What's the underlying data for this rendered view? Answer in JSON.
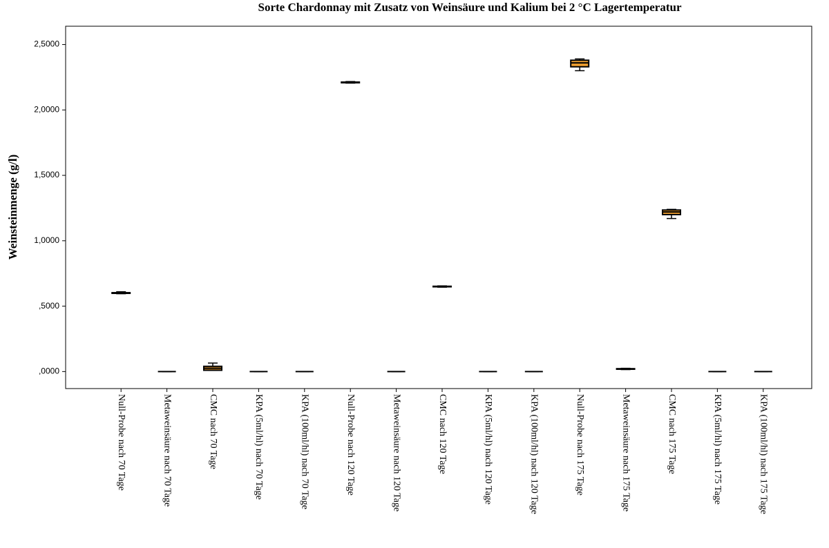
{
  "chart_data": {
    "type": "boxplot",
    "title": "Sorte Chardonnay mit Zusatz von Weinsäure und Kalium bei 2 °C Lagertemperatur",
    "y_label": "Weinsteinmenge (g/l)",
    "categories": [
      "Null-Probe nach 70 Tage",
      "Metaweinsäure nach 70 Tage",
      "CMC nach 70 Tage",
      "KPA (5ml/hl) nach 70 Tage",
      "KPA (100ml/hl) nach 70 Tage",
      "Null-Probe nach 120 Tage",
      "Metaweinsäure nach 120 Tage",
      "CMC nach 120 Tage",
      "KPA (5ml/hl) nach 120 Tage",
      "KPA (100ml/hl) nach 120 Tage",
      "Null-Probe nach 175 Tage",
      "Metaweinsäure nach 175 Tage",
      "CMC nach 175 Tage",
      "KPA (5ml/hl) nach 175 Tage",
      "KPA (100ml/hl) nach 175 Tage"
    ],
    "boxes": [
      {
        "min": 0.595,
        "q1": 0.598,
        "median": 0.6,
        "q3": 0.603,
        "max": 0.61
      },
      {
        "min": 0,
        "q1": 0,
        "median": 0,
        "q3": 0,
        "max": 0
      },
      {
        "min": 0.01,
        "q1": 0.01,
        "median": 0.025,
        "q3": 0.04,
        "max": 0.065
      },
      {
        "min": 0,
        "q1": 0,
        "median": 0,
        "q3": 0,
        "max": 0
      },
      {
        "min": 0,
        "q1": 0,
        "median": 0,
        "q3": 0,
        "max": 0
      },
      {
        "min": 2.205,
        "q1": 2.208,
        "median": 2.21,
        "q3": 2.213,
        "max": 2.217
      },
      {
        "min": 0,
        "q1": 0,
        "median": 0,
        "q3": 0,
        "max": 0
      },
      {
        "min": 0.645,
        "q1": 0.648,
        "median": 0.65,
        "q3": 0.652,
        "max": 0.655
      },
      {
        "min": 0,
        "q1": 0,
        "median": 0,
        "q3": 0,
        "max": 0
      },
      {
        "min": 0,
        "q1": 0,
        "median": 0,
        "q3": 0,
        "max": 0
      },
      {
        "min": 2.3,
        "q1": 2.33,
        "median": 2.36,
        "q3": 2.38,
        "max": 2.39
      },
      {
        "min": 0.015,
        "q1": 0.018,
        "median": 0.02,
        "q3": 0.022,
        "max": 0.025
      },
      {
        "min": 1.17,
        "q1": 1.2,
        "median": 1.22,
        "q3": 1.235,
        "max": 1.24
      },
      {
        "min": 0,
        "q1": 0,
        "median": 0,
        "q3": 0,
        "max": 0
      },
      {
        "min": 0,
        "q1": 0,
        "median": 0,
        "q3": 0,
        "max": 0
      }
    ],
    "color": "#f0a030",
    "ylim": [
      -0.13,
      2.64
    ],
    "yticks": [
      {
        "value": 0,
        "label": ",0000"
      },
      {
        "value": 0.5,
        "label": ",5000"
      },
      {
        "value": 1,
        "label": "1,0000"
      },
      {
        "value": 1.5,
        "label": "1,5000"
      },
      {
        "value": 2,
        "label": "2,0000"
      },
      {
        "value": 2.5,
        "label": "2,5000"
      }
    ]
  }
}
